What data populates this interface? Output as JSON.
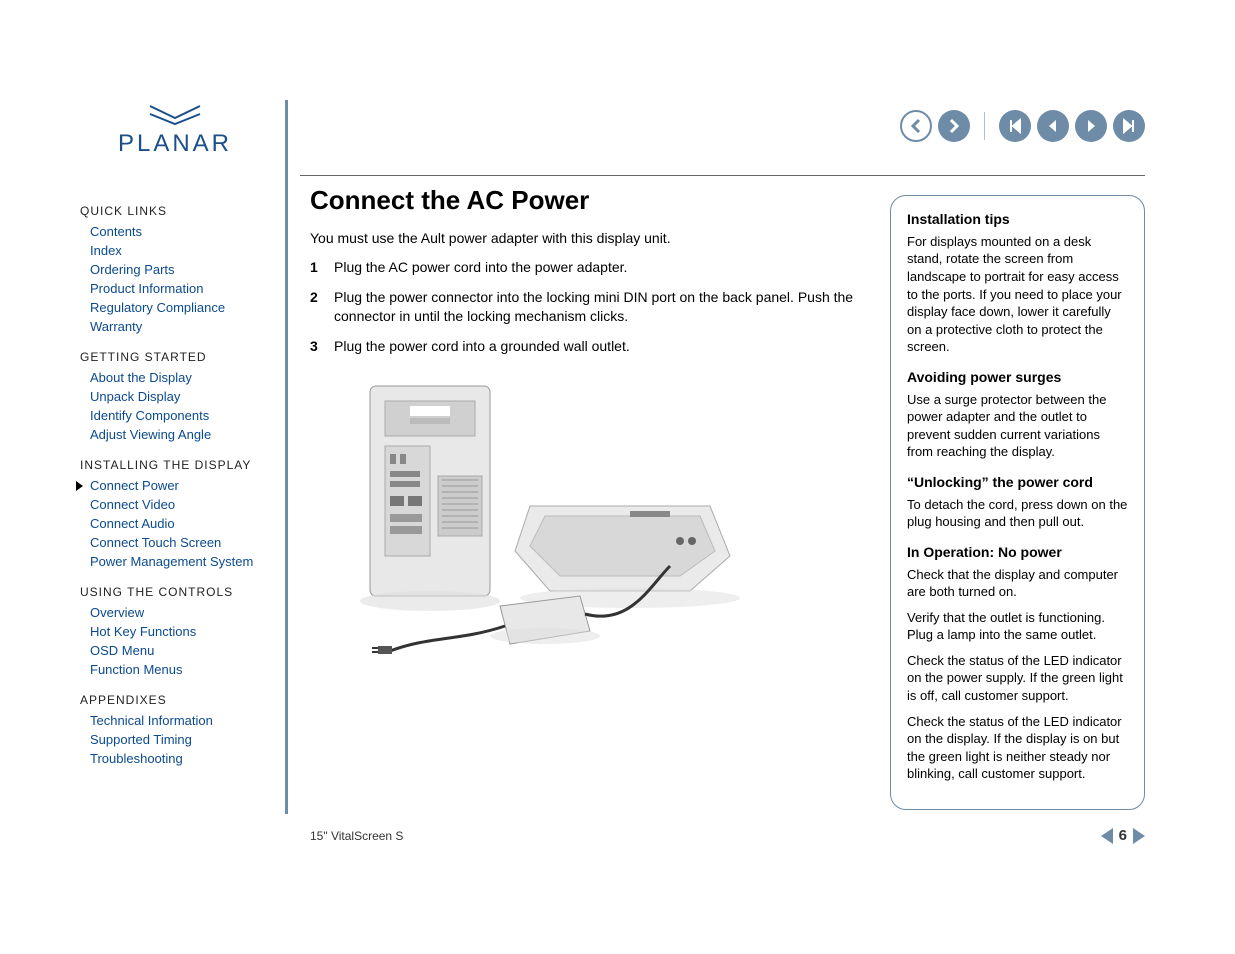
{
  "brand": {
    "name": "PLANAR",
    "logo_color": "#1a4f8a"
  },
  "colors": {
    "link": "#0b4a8f",
    "accent": "#6e8ca8",
    "text": "#000000",
    "border": "#666666"
  },
  "nav_buttons": {
    "history_back": "history-back",
    "history_forward": "history-forward",
    "first_page": "first-page",
    "prev_page": "prev-page",
    "next_page": "next-page",
    "last_page": "last-page"
  },
  "sidebar": {
    "sections": [
      {
        "title": "QUICK LINKS",
        "items": [
          "Contents",
          "Index",
          "Ordering Parts",
          "Product Information",
          "Regulatory Compliance",
          "Warranty"
        ]
      },
      {
        "title": "GETTING STARTED",
        "items": [
          "About the Display",
          "Unpack Display",
          "Identify Components",
          "Adjust Viewing Angle"
        ]
      },
      {
        "title": "INSTALLING THE DISPLAY",
        "items": [
          "Connect Power",
          "Connect Video",
          "Connect Audio",
          "Connect Touch Screen",
          "Power Management System"
        ],
        "current": "Connect Power"
      },
      {
        "title": "USING THE CONTROLS",
        "items": [
          "Overview",
          "Hot Key Functions",
          "OSD Menu",
          "Function Menus"
        ]
      },
      {
        "title": "APPENDIXES",
        "items": [
          "Technical Information",
          "Supported Timing",
          "Troubleshooting"
        ]
      }
    ]
  },
  "main": {
    "title": "Connect the AC Power",
    "intro": "You must use the Ault power adapter with this display unit.",
    "steps": [
      {
        "n": "1",
        "text": "Plug the AC power cord into the power adapter."
      },
      {
        "n": "2",
        "text": "Plug the power connector into the locking mini DIN port on the back panel. Push the connector in until the locking mechanism clicks."
      },
      {
        "n": "3",
        "text": "Plug the power cord into a grounded wall outlet."
      }
    ],
    "illustration_alt": "Computer tower, display base, and power adapter connected by cables"
  },
  "tips": {
    "blocks": [
      {
        "h": "Installation tips",
        "p": [
          "For displays mounted on a desk stand, rotate the screen from landscape to portrait for easy access to the ports. If you need to place your display face down, lower it carefully on a protective cloth to protect the screen."
        ]
      },
      {
        "h": "Avoiding power surges",
        "p": [
          "Use a surge protector between the power adapter and the outlet to prevent sudden current variations from reaching the display."
        ]
      },
      {
        "h": "“Unlocking” the power cord",
        "p": [
          "To detach the cord, press down on the plug housing and then pull out."
        ]
      },
      {
        "h": "In Operation: No power",
        "p": [
          "Check that the display and computer are both turned on.",
          "Verify that the outlet is functioning. Plug a lamp into the same outlet.",
          "Check the status of the LED indicator on the power supply.  If the green light is off, call customer support.",
          "Check the status of the LED indicator on the display. If the display is on but the green light is neither steady nor blinking, call customer support."
        ]
      }
    ]
  },
  "footer": {
    "product": "15\" VitalScreen S",
    "page": "6"
  }
}
